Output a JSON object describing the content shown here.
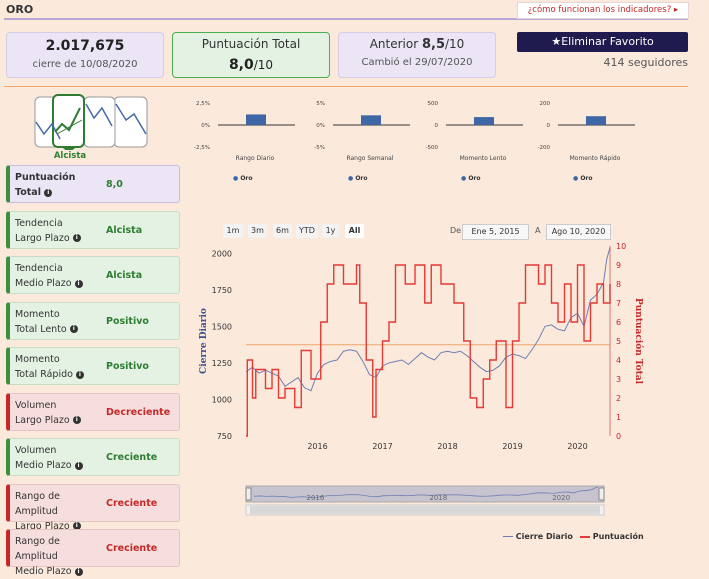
{
  "header": {
    "title": "ORO",
    "help_link": "¿cómo funcionan los indicadores?"
  },
  "cards": {
    "price": {
      "value": "2.017,675",
      "sub": "cierre de 10/08/2020"
    },
    "score": {
      "label": "Puntuación Total",
      "value": "8,0",
      "suffix": "/10"
    },
    "previous": {
      "label": "Anterior",
      "value": "8,5",
      "suffix": "/10",
      "sub": "Cambió el 29/07/2020"
    }
  },
  "favorite": {
    "button_label": "Eliminar Favorito",
    "followers": "414 seguidores"
  },
  "trend_icon_label": "Alcista",
  "sidebar": [
    {
      "l1": "Puntuación",
      "l2": "Total",
      "value": "8,0",
      "tone": "purple"
    },
    {
      "l1": "Tendencia",
      "l2": "Largo Plazo",
      "value": "Alcista",
      "tone": "green"
    },
    {
      "l1": "Tendencia",
      "l2": "Medio Plazo",
      "value": "Alcista",
      "tone": "green"
    },
    {
      "l1": "Momento",
      "l2": "Total Lento",
      "value": "Positivo",
      "tone": "green"
    },
    {
      "l1": "Momento",
      "l2": "Total Rápido",
      "value": "Positivo",
      "tone": "green"
    },
    {
      "l1": "Volumen",
      "l2": "Largo Plazo",
      "value": "Decreciente",
      "tone": "red"
    },
    {
      "l1": "Volumen",
      "l2": "Medio Plazo",
      "value": "Creciente",
      "tone": "green"
    },
    {
      "l1": "Rango de Amplitud",
      "l2": "Largo Plazo",
      "value": "Creciente",
      "tone": "red"
    },
    {
      "l1": "Rango de Amplitud",
      "l2": "Medio Plazo",
      "value": "Creciente",
      "tone": "red"
    }
  ],
  "mini_charts": [
    {
      "caption": "Rango Diario",
      "ticks": [
        "2,5%",
        "0%",
        "-2,5%"
      ],
      "legend": "Oro",
      "value": 1.2,
      "range": [
        -2.5,
        2.5
      ]
    },
    {
      "caption": "Rango Semanal",
      "ticks": [
        "5%",
        "0%",
        "-5%"
      ],
      "legend": "Oro",
      "value": 2.2,
      "range": [
        -5,
        5
      ]
    },
    {
      "caption": "Momento Lento",
      "ticks": [
        "500",
        "0",
        "-500"
      ],
      "legend": "Oro",
      "value": 180,
      "range": [
        -500,
        500
      ]
    },
    {
      "caption": "Momento Rápido",
      "ticks": [
        "200",
        "0",
        "-200"
      ],
      "legend": "Oro",
      "value": 80,
      "range": [
        -200,
        200
      ]
    }
  ],
  "range_buttons": [
    "1m",
    "3m",
    "6m",
    "YTD",
    "1y",
    "All"
  ],
  "date_range": {
    "from_label": "De",
    "from": "Ene 5, 2015",
    "to_label": "A",
    "to": "Ago 10, 2020"
  },
  "chart_data": {
    "type": "line",
    "ylabel": "Cierre Diario",
    "y2label": "Puntuación Total",
    "ylim": [
      750,
      2050
    ],
    "y2lim": [
      0,
      10
    ],
    "yticks": [
      "2000",
      "1750",
      "1500",
      "1250",
      "1000",
      "750"
    ],
    "y2ticks": [
      "10",
      "9",
      "8",
      "7",
      "6",
      "5",
      "4",
      "3",
      "2",
      "1",
      "0"
    ],
    "xticks": [
      "2016",
      "2017",
      "2018",
      "2019",
      "2020"
    ],
    "x_range": [
      2015.0,
      2020.6
    ],
    "reference_line": 4.8,
    "series": [
      {
        "name": "Cierre Diario",
        "color": "#6f7fb3",
        "points": [
          [
            2015.0,
            1190
          ],
          [
            2015.1,
            1220
          ],
          [
            2015.2,
            1180
          ],
          [
            2015.3,
            1200
          ],
          [
            2015.4,
            1180
          ],
          [
            2015.5,
            1160
          ],
          [
            2015.6,
            1090
          ],
          [
            2015.7,
            1120
          ],
          [
            2015.8,
            1150
          ],
          [
            2015.9,
            1080
          ],
          [
            2016.0,
            1060
          ],
          [
            2016.1,
            1180
          ],
          [
            2016.2,
            1240
          ],
          [
            2016.3,
            1260
          ],
          [
            2016.4,
            1270
          ],
          [
            2016.5,
            1330
          ],
          [
            2016.6,
            1340
          ],
          [
            2016.7,
            1330
          ],
          [
            2016.8,
            1260
          ],
          [
            2016.9,
            1170
          ],
          [
            2017.0,
            1150
          ],
          [
            2017.1,
            1230
          ],
          [
            2017.2,
            1250
          ],
          [
            2017.3,
            1260
          ],
          [
            2017.4,
            1270
          ],
          [
            2017.5,
            1240
          ],
          [
            2017.6,
            1280
          ],
          [
            2017.7,
            1320
          ],
          [
            2017.8,
            1290
          ],
          [
            2017.9,
            1270
          ],
          [
            2018.0,
            1320
          ],
          [
            2018.1,
            1330
          ],
          [
            2018.2,
            1320
          ],
          [
            2018.3,
            1330
          ],
          [
            2018.4,
            1300
          ],
          [
            2018.5,
            1260
          ],
          [
            2018.6,
            1220
          ],
          [
            2018.7,
            1190
          ],
          [
            2018.8,
            1200
          ],
          [
            2018.9,
            1230
          ],
          [
            2019.0,
            1290
          ],
          [
            2019.1,
            1310
          ],
          [
            2019.2,
            1300
          ],
          [
            2019.3,
            1280
          ],
          [
            2019.4,
            1340
          ],
          [
            2019.5,
            1410
          ],
          [
            2019.6,
            1500
          ],
          [
            2019.7,
            1510
          ],
          [
            2019.8,
            1480
          ],
          [
            2019.9,
            1470
          ],
          [
            2020.0,
            1560
          ],
          [
            2020.1,
            1590
          ],
          [
            2020.2,
            1500
          ],
          [
            2020.3,
            1680
          ],
          [
            2020.4,
            1720
          ],
          [
            2020.5,
            1800
          ],
          [
            2020.55,
            1960
          ],
          [
            2020.6,
            2040
          ]
        ]
      },
      {
        "name": "Puntuación",
        "color": "#e53935",
        "axis": "right",
        "step": true,
        "points": [
          [
            2015.0,
            0
          ],
          [
            2015.02,
            4
          ],
          [
            2015.1,
            2
          ],
          [
            2015.15,
            3.5
          ],
          [
            2015.3,
            2.5
          ],
          [
            2015.4,
            3.5
          ],
          [
            2015.5,
            2
          ],
          [
            2015.6,
            2.5
          ],
          [
            2015.75,
            1.5
          ],
          [
            2015.85,
            4.5
          ],
          [
            2016.0,
            3
          ],
          [
            2016.15,
            6
          ],
          [
            2016.25,
            8
          ],
          [
            2016.35,
            9
          ],
          [
            2016.5,
            8
          ],
          [
            2016.7,
            9
          ],
          [
            2016.75,
            7
          ],
          [
            2016.85,
            4
          ],
          [
            2016.95,
            1
          ],
          [
            2017.0,
            3.5
          ],
          [
            2017.1,
            5
          ],
          [
            2017.2,
            6
          ],
          [
            2017.3,
            9
          ],
          [
            2017.45,
            8
          ],
          [
            2017.6,
            9
          ],
          [
            2017.75,
            7
          ],
          [
            2017.85,
            9
          ],
          [
            2018.0,
            8
          ],
          [
            2018.2,
            7
          ],
          [
            2018.35,
            5
          ],
          [
            2018.45,
            2
          ],
          [
            2018.55,
            1.5
          ],
          [
            2018.65,
            3
          ],
          [
            2018.75,
            4
          ],
          [
            2018.85,
            5
          ],
          [
            2019.0,
            1.5
          ],
          [
            2019.1,
            5
          ],
          [
            2019.2,
            7
          ],
          [
            2019.3,
            9
          ],
          [
            2019.5,
            8
          ],
          [
            2019.6,
            9
          ],
          [
            2019.7,
            7
          ],
          [
            2019.8,
            6
          ],
          [
            2019.9,
            8
          ],
          [
            2020.0,
            6
          ],
          [
            2020.1,
            9
          ],
          [
            2020.2,
            5
          ],
          [
            2020.3,
            7
          ],
          [
            2020.4,
            8
          ],
          [
            2020.5,
            7
          ],
          [
            2020.6,
            8
          ]
        ]
      }
    ]
  },
  "navigator_labels": [
    "2016",
    "2018",
    "2020"
  ],
  "colors": {
    "accent_purple": "#1f1b4f",
    "positive": "#2e7d32",
    "negative": "#c62828",
    "bar": "#3f67a6"
  }
}
